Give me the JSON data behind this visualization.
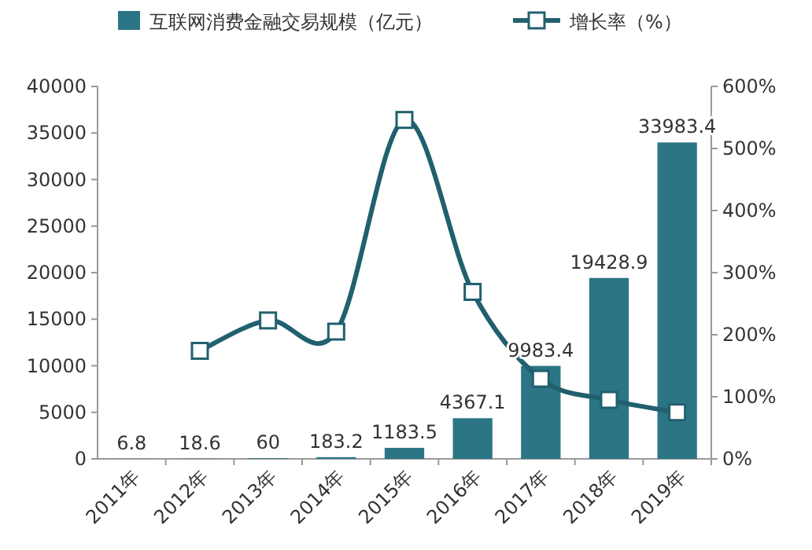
{
  "chart_data": {
    "type": "bar",
    "categories": [
      "2011年",
      "2012年",
      "2013年",
      "2014年",
      "2015年",
      "2016年",
      "2017年",
      "2018年",
      "2019年"
    ],
    "series": [
      {
        "name": "互联网消费金融交易规模（亿元）",
        "color": "#2b7585",
        "values": [
          6.8,
          18.6,
          60,
          183.2,
          1183.5,
          4367.1,
          9983.4,
          19428.9,
          33983.4
        ],
        "value_labels": [
          "6.8",
          "18.6",
          "60",
          "183.2",
          "1183.5",
          "4367.1",
          "9983.4",
          "19428.9",
          "33983.4"
        ]
      },
      {
        "name": "增长率（%）",
        "type": "line",
        "axis": "y2",
        "color": "#21606e",
        "values": [
          null,
          174,
          223,
          205,
          546,
          269,
          129,
          95,
          75
        ]
      }
    ],
    "ylim": [
      0,
      40000
    ],
    "yticks": [
      0,
      5000,
      10000,
      15000,
      20000,
      25000,
      30000,
      35000,
      40000
    ],
    "y2lim": [
      0,
      600
    ],
    "y2ticks": [
      {
        "value": 0,
        "label": "0%"
      },
      {
        "value": 100,
        "label": "100%"
      },
      {
        "value": 200,
        "label": "200%"
      },
      {
        "value": 300,
        "label": "300%"
      },
      {
        "value": 400,
        "label": "400%"
      },
      {
        "value": 500,
        "label": "500%"
      },
      {
        "value": 600,
        "label": "600%"
      }
    ],
    "marker": "square",
    "legend": "top",
    "grid": false
  }
}
